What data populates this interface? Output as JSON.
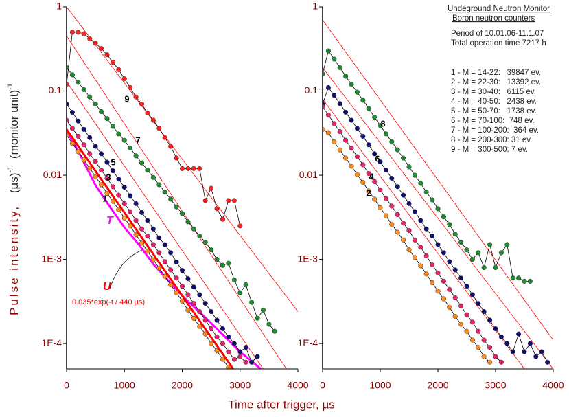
{
  "figure": {
    "xlabel": "Time after trigger,  µs",
    "ylabel": [
      "Pulse intensity,",
      "(µs)",
      "-1",
      "(monitor unit)",
      "-1"
    ]
  },
  "chart_data": [
    {
      "type": "scatter",
      "log_y": true,
      "xlim": [
        0,
        4000
      ],
      "xticks": [
        0,
        1000,
        2000,
        3000,
        4000
      ],
      "ylim": [
        5e-05,
        1
      ],
      "yticks": [
        1,
        0.1,
        0.01,
        {
          "value": 0.001,
          "label": "1E-3"
        },
        {
          "value": 0.0001,
          "label": "1E-4"
        }
      ],
      "x": [
        0,
        100,
        200,
        300,
        400,
        500,
        600,
        700,
        800,
        900,
        1000,
        1100,
        1200,
        1300,
        1400,
        1500,
        1600,
        1700,
        1800,
        1900,
        2000,
        2100,
        2200,
        2300,
        2400,
        2500,
        2600,
        2700,
        2800,
        2900,
        3000,
        3100,
        3200,
        3300,
        3400,
        3500,
        3600
      ],
      "series": [
        {
          "name": "9",
          "color": "#ff2020",
          "values": [
            0.12,
            0.5,
            0.5,
            0.48,
            0.42,
            0.37,
            0.32,
            0.27,
            0.22,
            0.18,
            0.14,
            0.11,
            0.085,
            0.07,
            0.055,
            0.045,
            0.036,
            0.028,
            0.022,
            0.016,
            0.012,
            0.012,
            0.012,
            0.012,
            0.005,
            0.007,
            0.004,
            0.003,
            0.005,
            0.005,
            0.0025,
            null,
            null,
            null,
            null,
            null,
            null
          ]
        },
        {
          "name": "7",
          "color": "#208a30",
          "values": [
            0.19,
            0.156,
            0.127,
            0.104,
            0.085,
            0.07,
            0.057,
            0.047,
            0.038,
            0.031,
            0.026,
            0.021,
            0.017,
            0.014,
            0.0115,
            0.0094,
            0.0077,
            0.0063,
            0.0052,
            0.0042,
            0.0035,
            0.0028,
            0.0023,
            0.0019,
            0.0016,
            0.0013,
            0.001,
            0.00085,
            0.0009,
            0.00057,
            0.0004,
            0.0005,
            0.00031,
            0.0002,
            0.00025,
            0.00017,
            0.00014
          ]
        },
        {
          "name": "5",
          "color": "#101070",
          "values": [
            0.07,
            0.056,
            0.044,
            0.035,
            0.028,
            0.022,
            0.018,
            0.0143,
            0.0113,
            0.009,
            0.0072,
            0.0057,
            0.0046,
            0.0036,
            0.0029,
            0.0023,
            0.0018,
            0.0015,
            0.0012,
            0.00093,
            0.00074,
            0.00059,
            0.00047,
            0.00038,
            0.0003,
            0.00024,
            0.00019,
            0.00015,
            0.00012,
            0.0001,
            8e-05,
            9e-05,
            6e-05,
            7e-05,
            null,
            null,
            null
          ]
        },
        {
          "name": "3",
          "color": "#e8206e",
          "values": [
            0.045,
            0.036,
            0.029,
            0.023,
            0.018,
            0.0145,
            0.0115,
            0.0092,
            0.0073,
            0.0058,
            0.0046,
            0.0037,
            0.0029,
            0.0023,
            0.0019,
            0.0015,
            0.0012,
            0.00094,
            0.00075,
            0.0006,
            0.00048,
            0.00038,
            0.0003,
            0.00024,
            0.00019,
            0.00015,
            0.00012,
            0.0001,
            8e-05,
            6.5e-05,
            7e-05,
            6e-05,
            null,
            null,
            null,
            null,
            null
          ]
        },
        {
          "name": "1",
          "color": "#ff8c1a",
          "values": [
            0.03,
            0.0239,
            0.019,
            0.0152,
            0.0121,
            0.0096,
            0.0077,
            0.0061,
            0.0049,
            0.0039,
            0.0031,
            0.0025,
            0.00196,
            0.00156,
            0.00125,
            0.00099,
            0.00079,
            0.00063,
            0.0005,
            0.0004,
            0.00032,
            0.00025,
            0.0002,
            0.00016,
            0.00013,
            0.0001,
            8.2e-05,
            6.5e-05,
            5.2e-05,
            null,
            null,
            null,
            null,
            null,
            null,
            null,
            null
          ]
        }
      ],
      "fit_color": "#ff0000",
      "fit_lines": [
        {
          "x": [
            0,
            4000
          ],
          "values": [
            1,
            0.00024
          ]
        },
        {
          "x": [
            0,
            3800
          ],
          "values": [
            0.45,
            5e-05
          ]
        },
        {
          "x": [
            0,
            3400
          ],
          "values": [
            0.13,
            5e-05
          ]
        }
      ],
      "curves": [
        {
          "name": "T",
          "color": "#ff00ff",
          "x": [
            0,
            250,
            500,
            750,
            1000,
            1250,
            1500,
            2000,
            2500,
            3000,
            3360
          ],
          "values": [
            0.034,
            0.0167,
            0.0076,
            0.0042,
            0.0024,
            0.0015,
            0.00088,
            0.00037,
            0.000175,
            8e-05,
            5e-05
          ]
        },
        {
          "name": "U",
          "color": "#ff0000",
          "x": [
            0,
            2880
          ],
          "values": [
            0.035,
            5e-05
          ]
        }
      ],
      "annotation": "0.035*exp(-t / 440 µs)"
    },
    {
      "type": "scatter",
      "log_y": true,
      "xlim": [
        0,
        4000
      ],
      "xticks": [
        0,
        1000,
        2000,
        3000,
        4000
      ],
      "ylim": [
        5e-05,
        1
      ],
      "yticks": [
        1,
        0.1,
        0.01,
        {
          "value": 0.001,
          "label": "1E-3"
        },
        {
          "value": 0.0001,
          "label": "1E-4"
        }
      ],
      "x": [
        0,
        100,
        200,
        300,
        400,
        500,
        600,
        700,
        800,
        900,
        1000,
        1100,
        1200,
        1300,
        1400,
        1500,
        1600,
        1700,
        1800,
        1900,
        2000,
        2100,
        2200,
        2300,
        2400,
        2500,
        2600,
        2700,
        2800,
        2900,
        3000,
        3100,
        3200,
        3300,
        3400,
        3500,
        3600,
        3700,
        3800,
        3900
      ],
      "series": [
        {
          "name": "8",
          "color": "#208a30",
          "values": [
            0.16,
            0.3,
            0.24,
            0.19,
            0.15,
            0.12,
            0.097,
            0.078,
            0.062,
            0.049,
            0.039,
            0.031,
            0.025,
            0.02,
            0.016,
            0.0126,
            0.01,
            0.008,
            0.0063,
            0.0051,
            0.004,
            0.0032,
            0.0026,
            0.002,
            0.0016,
            0.0013,
            0.001,
            0.0012,
            0.0008,
            0.0015,
            0.0008,
            0.0012,
            0.0015,
            0.0006,
            0.0006,
            0.00055,
            0.00055,
            null,
            null,
            null
          ]
        },
        {
          "name": "6",
          "color": "#101070",
          "values": [
            0.07,
            0.11,
            0.089,
            0.071,
            0.056,
            0.045,
            0.036,
            0.029,
            0.023,
            0.018,
            0.0144,
            0.0115,
            0.0092,
            0.0073,
            0.0058,
            0.0046,
            0.0037,
            0.0029,
            0.0023,
            0.0019,
            0.0015,
            0.0012,
            0.00094,
            0.00075,
            0.0006,
            0.00048,
            0.00038,
            0.0003,
            0.00024,
            0.00019,
            0.00015,
            0.00012,
            0.0001,
            8e-05,
            0.00013,
            8e-05,
            0.0001,
            7e-05,
            8e-05,
            6e-05
          ]
        },
        {
          "name": "4",
          "color": "#e8206e",
          "values": [
            0.065,
            0.052,
            0.041,
            0.033,
            0.026,
            0.021,
            0.0166,
            0.0133,
            0.0105,
            0.0084,
            0.0067,
            0.0053,
            0.0043,
            0.0034,
            0.0027,
            0.0022,
            0.0017,
            0.0014,
            0.0011,
            0.00086,
            0.00069,
            0.00055,
            0.00044,
            0.00035,
            0.00028,
            0.00022,
            0.00018,
            0.00014,
            0.00011,
            9e-05,
            7e-05,
            6e-05,
            null,
            null,
            null,
            null,
            null,
            null,
            null,
            null
          ]
        },
        {
          "name": "2",
          "color": "#ff8c1a",
          "values": [
            0.035,
            0.032,
            0.025,
            0.02,
            0.016,
            0.0128,
            0.0102,
            0.0082,
            0.0065,
            0.0052,
            0.0041,
            0.0033,
            0.0026,
            0.0021,
            0.0017,
            0.0013,
            0.00105,
            0.00084,
            0.00067,
            0.00053,
            0.00042,
            0.00034,
            0.00027,
            0.00021,
            0.00017,
            0.00014,
            0.00011,
            9e-05,
            7e-05,
            6e-05,
            null,
            null,
            null,
            null,
            null,
            null,
            null,
            null,
            null,
            null
          ]
        }
      ],
      "fit_color": "#ff0000",
      "fit_lines": [
        {
          "x": [
            0,
            4000
          ],
          "values": [
            0.7,
            0.00011
          ]
        },
        {
          "x": [
            0,
            4000
          ],
          "values": [
            0.19,
            5e-05
          ]
        },
        {
          "x": [
            0,
            3500
          ],
          "values": [
            0.08,
            5e-05
          ]
        }
      ],
      "info_title": [
        "Undeground Neutron Monitor",
        "Boron neutron counters"
      ],
      "info_lines": [
        "Period of 10.01.06-11.1.07",
        "Total operation time 7217 h"
      ],
      "legend_lines": [
        "1 - M = 14-22:   39847 ev.",
        "2 - M = 22-30:   13392 ev.",
        "3 - M = 30-40:   6115 ev.",
        "4 - M = 40-50:   2438 ev.",
        "5 - M = 50-70:   1738 ev.",
        "6 - M = 70-100:  748 ev.",
        "7 - M = 100-200:  364 ev.",
        "8 - M = 200-300: 31 ev.",
        "9 - M = 300-500: 7 ev."
      ]
    }
  ]
}
